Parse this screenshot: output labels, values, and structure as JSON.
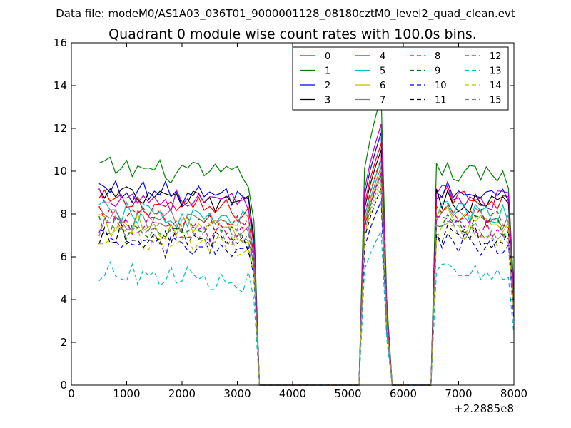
{
  "chart_data": {
    "type": "line",
    "suptitle": "Data file: modeM0/AS1A03_036T01_9000001128_08180cztM0_level2_quad_clean.evt",
    "title": "Quadrant 0 module wise count rates with 100.0s bins.",
    "xlabel": "",
    "ylabel": "",
    "x_offset_label": "+2.2885e8",
    "xlim": [
      0,
      8000
    ],
    "ylim": [
      0,
      16
    ],
    "xticks": [
      0,
      1000,
      2000,
      3000,
      4000,
      5000,
      6000,
      7000,
      8000
    ],
    "yticks": [
      0,
      2,
      4,
      6,
      8,
      10,
      12,
      14,
      16
    ],
    "legend_position": "top-right",
    "legend_columns": 4,
    "segments": [
      {
        "x_start": 500,
        "x_end": 3300,
        "step": 100
      },
      {
        "x_start": 3400,
        "x_end": 5200,
        "step": 100
      },
      {
        "x_start": 5300,
        "x_end": 5700,
        "step": 100
      },
      {
        "x_start": 5800,
        "x_end": 6500,
        "step": 100
      },
      {
        "x_start": 6600,
        "x_end": 8000,
        "step": 100
      }
    ],
    "series": [
      {
        "name": "0",
        "color": "#ff0000",
        "style": "solid",
        "level_seg1": 8.6,
        "level_peak": 11.3,
        "level_seg3": 8.9
      },
      {
        "name": "1",
        "color": "#008000",
        "style": "solid",
        "level_seg1": 10.2,
        "level_peak": 13.5,
        "level_seg3": 10.0
      },
      {
        "name": "2",
        "color": "#0000ff",
        "style": "solid",
        "level_seg1": 9.2,
        "level_peak": 11.8,
        "level_seg3": 9.1
      },
      {
        "name": "3",
        "color": "#000000",
        "style": "solid",
        "level_seg1": 8.9,
        "level_peak": 11.0,
        "level_seg3": 8.7
      },
      {
        "name": "4",
        "color": "#bf00bf",
        "style": "solid",
        "level_seg1": 8.9,
        "level_peak": 12.2,
        "level_seg3": 8.9
      },
      {
        "name": "5",
        "color": "#00bfbf",
        "style": "solid",
        "level_seg1": 8.1,
        "level_peak": 10.5,
        "level_seg3": 8.2
      },
      {
        "name": "6",
        "color": "#bfbf00",
        "style": "solid",
        "level_seg1": 7.6,
        "level_peak": 10.0,
        "level_seg3": 7.9
      },
      {
        "name": "7",
        "color": "#808080",
        "style": "solid",
        "level_seg1": 7.9,
        "level_peak": 10.2,
        "level_seg3": 8.0
      },
      {
        "name": "8",
        "color": "#ff0000",
        "style": "dashed",
        "level_seg1": 7.9,
        "level_peak": 10.6,
        "level_seg3": 8.1
      },
      {
        "name": "9",
        "color": "#008000",
        "style": "dashed",
        "level_seg1": 7.4,
        "level_peak": 9.8,
        "level_seg3": 7.6
      },
      {
        "name": "10",
        "color": "#0000ff",
        "style": "dashed",
        "level_seg1": 6.7,
        "level_peak": 8.6,
        "level_seg3": 6.7
      },
      {
        "name": "11",
        "color": "#000000",
        "style": "dashed",
        "level_seg1": 7.1,
        "level_peak": 9.2,
        "level_seg3": 7.1
      },
      {
        "name": "12",
        "color": "#bf00bf",
        "style": "dashed",
        "level_seg1": 7.6,
        "level_peak": 9.9,
        "level_seg3": 7.4
      },
      {
        "name": "13",
        "color": "#00bfbf",
        "style": "dashed",
        "level_seg1": 5.3,
        "level_peak": 7.2,
        "level_seg3": 5.3
      },
      {
        "name": "14",
        "color": "#bfbf00",
        "style": "dashed",
        "level_seg1": 7.0,
        "level_peak": 9.4,
        "level_seg3": 7.2
      },
      {
        "name": "15",
        "color": "#808080",
        "style": "dashed",
        "level_seg1": 7.3,
        "level_peak": 9.6,
        "level_seg3": 7.3
      }
    ]
  }
}
